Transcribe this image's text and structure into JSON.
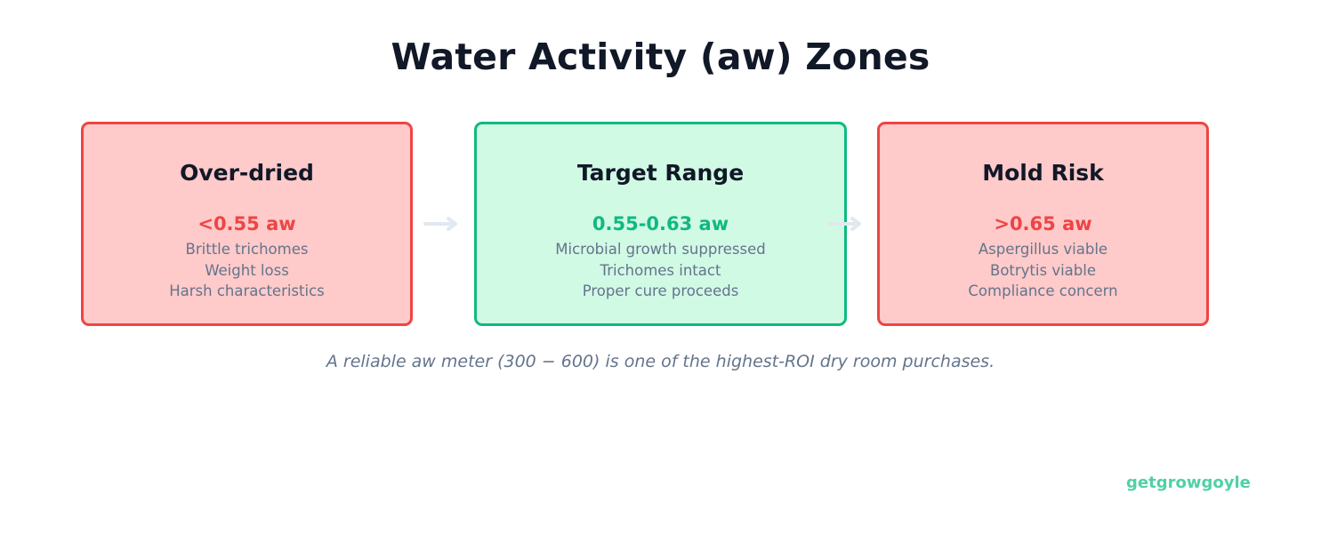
{
  "title": "Water Activity (aw) Zones",
  "colors": {
    "danger_border": "#ef4444",
    "danger_fill": "#fecaca",
    "safe_border": "#10b981",
    "safe_fill": "#d1fae5",
    "arrow": "#e2e8f0",
    "brand": "#4fd1a5"
  },
  "zones": [
    {
      "heading": "Over-dried",
      "value": "<0.55 aw",
      "lines": [
        "Brittle trichomes",
        "Weight loss",
        "Harsh characteristics"
      ]
    },
    {
      "heading": "Target Range",
      "value": "0.55-0.63 aw",
      "lines": [
        "Microbial growth suppressed",
        "Trichomes intact",
        "Proper cure proceeds"
      ]
    },
    {
      "heading": "Mold Risk",
      "value": ">0.65 aw",
      "lines": [
        "Aspergillus viable",
        "Botrytis viable",
        "Compliance concern"
      ]
    }
  ],
  "arrows": [
    "arrow-right-icon",
    "arrow-right-icon"
  ],
  "caption": "A reliable aw meter (300 − 600) is one of the highest-ROI dry room purchases.",
  "brand": "getgrowgoyle"
}
